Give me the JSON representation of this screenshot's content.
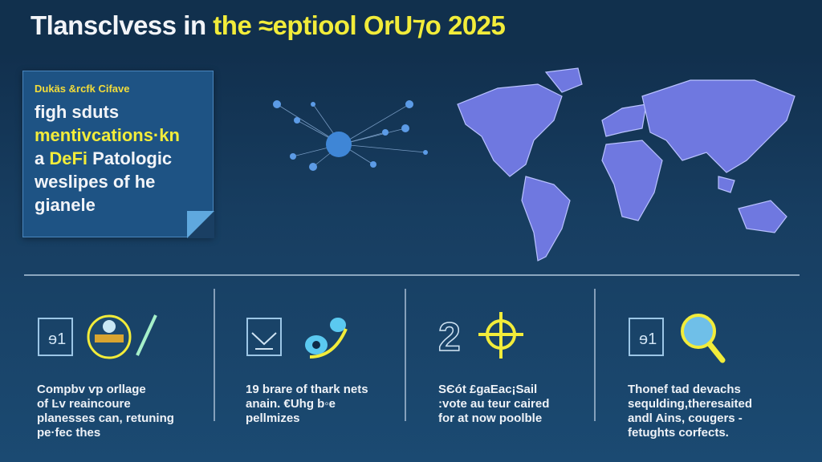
{
  "header": {
    "title_white": "Tlansclvess in ",
    "title_yellow": "the ≈eptiool OrU⁊o 2025"
  },
  "note_card": {
    "subtitle": "Dukäs &rcfk Cifave",
    "lines": [
      {
        "text": "figh sduts",
        "highlight": false
      },
      {
        "text": "mentivcations·kn",
        "highlight": true
      }
    ],
    "line3_prefix": "a ",
    "line3_highlight": "DeFi",
    "line3_suffix": " Patologic",
    "line4": "weslipes of he",
    "line5": "gianele"
  },
  "columns": [
    {
      "icons": [
        "document-icon",
        "target-burger-icon"
      ],
      "text": [
        "Compbv ⱱp orllage",
        "of Ŀv reaincoure",
        "planesses can, retuning",
        "pe·fec thes"
      ]
    },
    {
      "icons": [
        "chart-document-icon",
        "chain-link-icon"
      ],
      "text": [
        "19 brare of thark nets",
        "anain. €Uhg b◦e",
        "pellmizes"
      ]
    },
    {
      "icons": [
        "number-two-icon",
        "crosshair-icon"
      ],
      "text": [
        "SЄót £gaEac¡Sail",
        ":vote au teur caired",
        "for at now poolble"
      ]
    },
    {
      "icons": [
        "document-icon",
        "magnifier-globe-icon"
      ],
      "text": [
        "Thonef tad devachs",
        "sequlding,theresaited",
        "andl Ains, cougers -",
        "fetughts corfects."
      ]
    }
  ],
  "colors": {
    "accent_yellow": "#f2ec3a",
    "background": "#173d60",
    "map_fill": "#6f78e0",
    "node_blue": "#4c8fe0"
  }
}
